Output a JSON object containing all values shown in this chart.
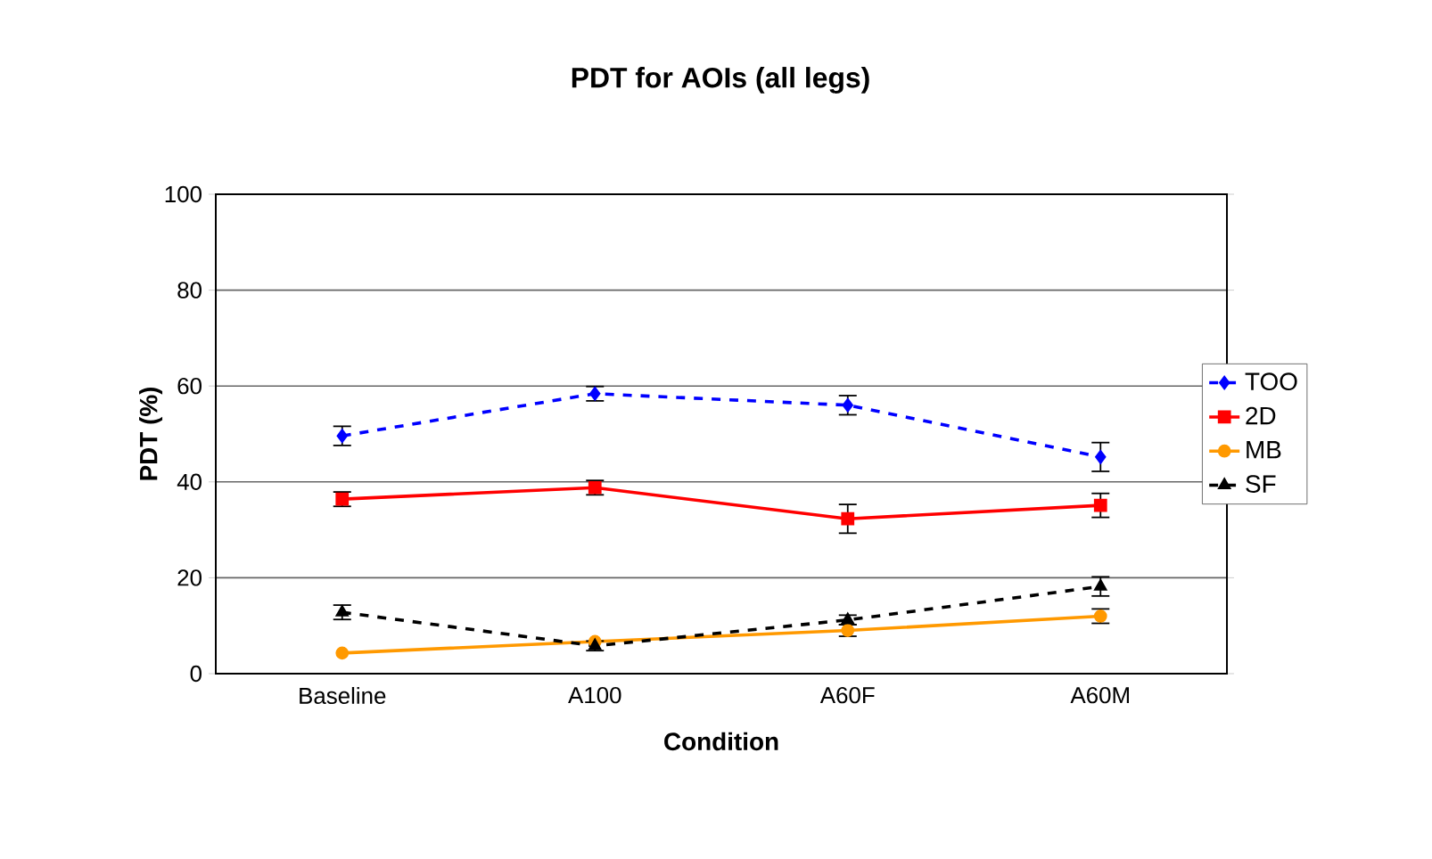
{
  "chart_data": {
    "type": "line",
    "title": "PDT for AOIs (all legs)",
    "xlabel": "Condition",
    "ylabel": "PDT (%)",
    "categories": [
      "Baseline",
      "A100",
      "A60F",
      "A60M"
    ],
    "ylim": [
      0,
      100
    ],
    "yticks": [
      0,
      20,
      40,
      60,
      80,
      100
    ],
    "grid": "y",
    "legend": "right",
    "series": [
      {
        "name": "TOO",
        "color": "#0000ff",
        "marker": "diamond",
        "line_style": "dashed",
        "values": [
          49.6,
          58.4,
          56,
          45.2
        ],
        "errors": [
          2,
          1.5,
          2,
          3
        ]
      },
      {
        "name": "2D",
        "color": "#ff0000",
        "marker": "square",
        "line_style": "solid",
        "values": [
          36.4,
          38.8,
          32.3,
          35.1
        ],
        "errors": [
          1.5,
          1.5,
          3,
          2.5
        ]
      },
      {
        "name": "MB",
        "color": "#ff9900",
        "marker": "circle",
        "line_style": "solid",
        "values": [
          4.3,
          6.7,
          9,
          12
        ],
        "errors": [
          null,
          null,
          1.2,
          1.5
        ]
      },
      {
        "name": "SF",
        "color": "#000000",
        "marker": "triangle",
        "line_style": "dashed",
        "values": [
          12.8,
          5.8,
          11.2,
          18.2
        ],
        "errors": [
          1.5,
          1,
          1,
          2
        ]
      }
    ]
  }
}
